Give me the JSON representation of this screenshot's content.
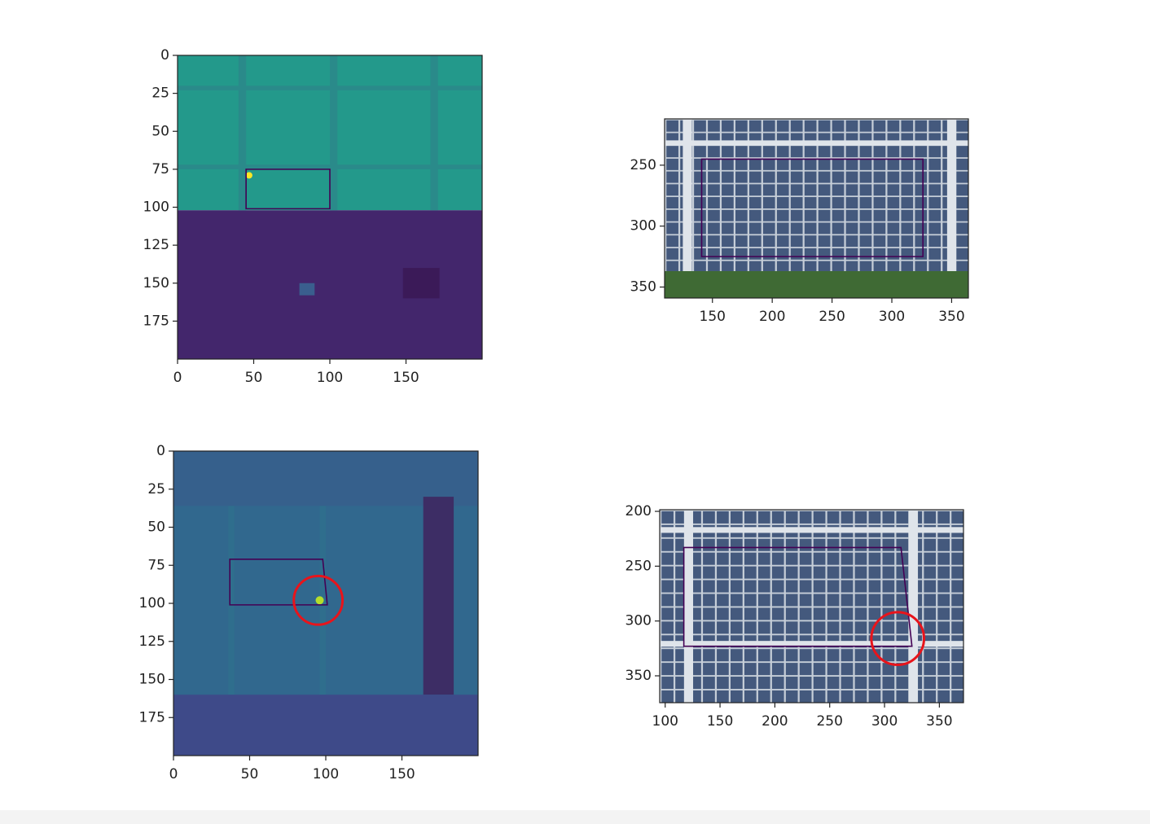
{
  "chart_data": [
    {
      "type": "image",
      "xlim": [
        0,
        200
      ],
      "ylim": [
        200,
        0
      ],
      "xticks": [
        0,
        50,
        100,
        150
      ],
      "yticks": [
        0,
        25,
        50,
        75,
        100,
        125,
        150,
        175
      ],
      "polygon": {
        "x": [
          45,
          100,
          100,
          45
        ],
        "y": [
          75,
          75,
          101,
          101
        ],
        "color": "#440154"
      }
    },
    {
      "type": "image",
      "xlim": [
        110,
        364
      ],
      "ylim": [
        359,
        212
      ],
      "xticks": [
        150,
        200,
        250,
        300,
        350
      ],
      "yticks": [
        250,
        300,
        350
      ],
      "polygon": {
        "x": [
          141,
          326,
          326,
          141
        ],
        "y": [
          245,
          245,
          325,
          325
        ],
        "color": "#440154"
      }
    },
    {
      "type": "image",
      "xlim": [
        0,
        200
      ],
      "ylim": [
        200,
        0
      ],
      "xticks": [
        0,
        50,
        100,
        150
      ],
      "yticks": [
        0,
        25,
        50,
        75,
        100,
        125,
        150,
        175
      ],
      "polygon": {
        "x": [
          37,
          98,
          101,
          37
        ],
        "y": [
          71,
          71,
          101,
          101
        ],
        "color": "#440154"
      },
      "circle": {
        "x": 95,
        "y": 98,
        "r": 16,
        "color": "#e8141b"
      }
    },
    {
      "type": "image",
      "xlim": [
        95,
        372
      ],
      "ylim": [
        374.5,
        198.5
      ],
      "xticks": [
        100,
        150,
        200,
        250,
        300,
        350
      ],
      "yticks": [
        200,
        250,
        300,
        350
      ],
      "polygon": {
        "x": [
          117,
          315,
          325,
          117
        ],
        "y": [
          233,
          233,
          323,
          323
        ],
        "color": "#440154"
      },
      "circle": {
        "x": 312,
        "y": 316,
        "r": 24,
        "color": "#e8141b"
      }
    }
  ]
}
